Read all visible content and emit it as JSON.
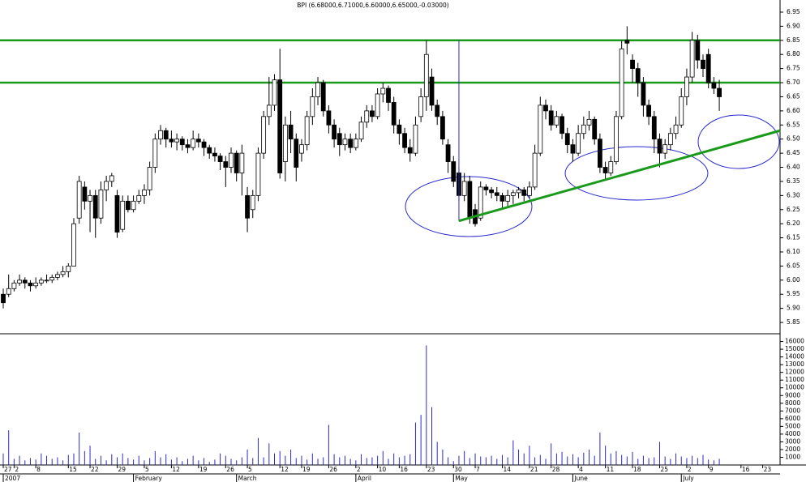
{
  "chart_data": {
    "type": "candlestick",
    "title": "BPI (6.68000,6.71000,6.60000,6.65000,-0.03000)",
    "xlim": [
      -0.6,
      143.2
    ],
    "ylim": [
      5.81,
      6.993
    ],
    "yticks": [
      5.85,
      {
        "value": 5.9,
        "label": "5.90"
      },
      5.95,
      {
        "value": 6.0,
        "label": "6.00"
      },
      6.05,
      {
        "value": 6.1,
        "label": "6.10"
      },
      6.15,
      {
        "value": 6.2,
        "label": "6.20"
      },
      6.25,
      {
        "value": 6.3,
        "label": "6.30"
      },
      6.35,
      {
        "value": 6.4,
        "label": "6.40"
      },
      6.45,
      {
        "value": 6.5,
        "label": "6.50"
      },
      6.55,
      {
        "value": 6.6,
        "label": "6.60"
      },
      6.65,
      {
        "value": 6.7,
        "label": "6.70"
      },
      6.75,
      {
        "value": 6.8,
        "label": "6.80"
      },
      6.85,
      {
        "value": 6.9,
        "label": "6.90"
      },
      6.95
    ],
    "xticks": [
      {
        "value": 0,
        "label": "27"
      },
      {
        "value": 2,
        "label": "2"
      },
      {
        "value": 6,
        "label": "8"
      },
      {
        "value": 12,
        "label": "15"
      },
      {
        "value": 16,
        "label": "22"
      },
      {
        "value": 21,
        "label": "29"
      },
      {
        "value": 26,
        "label": "5"
      },
      {
        "value": 31,
        "label": "12"
      },
      {
        "value": 36,
        "label": "19"
      },
      {
        "value": 41,
        "label": "26"
      },
      {
        "value": 45,
        "label": "5"
      },
      {
        "value": 51,
        "label": "12"
      },
      {
        "value": 55,
        "label": "19"
      },
      {
        "value": 60,
        "label": "26"
      },
      {
        "value": 65,
        "label": "2"
      },
      {
        "value": 69,
        "label": "10"
      },
      {
        "value": 73,
        "label": "16"
      },
      {
        "value": 78,
        "label": "23"
      },
      {
        "value": 83,
        "label": "30"
      },
      {
        "value": 87,
        "label": "7"
      },
      {
        "value": 92,
        "label": "14"
      },
      {
        "value": 97,
        "label": "21"
      },
      {
        "value": 101,
        "label": "28"
      },
      {
        "value": 106,
        "label": "4"
      },
      {
        "value": 111,
        "label": "11"
      },
      {
        "value": 116,
        "label": "18"
      },
      {
        "value": 121,
        "label": "25"
      },
      {
        "value": 126,
        "label": "2"
      },
      {
        "value": 130,
        "label": "9"
      },
      {
        "value": 136,
        "label": "16"
      },
      {
        "value": 140,
        "label": "23"
      }
    ],
    "month_ticks": [
      {
        "value": 0,
        "label": "2007"
      },
      {
        "value": 24,
        "label": "February"
      },
      {
        "value": 43,
        "label": "March"
      },
      {
        "value": 65,
        "label": "April"
      },
      {
        "value": 83,
        "label": "May"
      },
      {
        "value": 105,
        "label": "June"
      },
      {
        "value": 125,
        "label": "July"
      }
    ],
    "ohlc": [
      [
        5.95,
        5.97,
        5.9,
        5.92
      ],
      [
        5.95,
        6.02,
        5.94,
        5.97
      ],
      [
        5.97,
        6.0,
        5.96,
        5.99
      ],
      [
        5.99,
        6.02,
        5.98,
        6.0
      ],
      [
        6.0,
        6.01,
        5.97,
        5.99
      ],
      [
        5.99,
        6.0,
        5.96,
        5.98
      ],
      [
        5.98,
        6.01,
        5.97,
        5.99
      ],
      [
        5.99,
        6.01,
        5.98,
        6.0
      ],
      [
        6.0,
        6.02,
        5.99,
        6.0
      ],
      [
        6.0,
        6.02,
        5.99,
        6.01
      ],
      [
        6.01,
        6.03,
        6.0,
        6.02
      ],
      [
        6.02,
        6.05,
        6.01,
        6.03
      ],
      [
        6.03,
        6.06,
        6.01,
        6.05
      ],
      [
        6.05,
        6.22,
        6.05,
        6.2
      ],
      [
        6.22,
        6.37,
        6.2,
        6.35
      ],
      [
        6.33,
        6.35,
        6.25,
        6.28
      ],
      [
        6.28,
        6.32,
        6.17,
        6.3
      ],
      [
        6.3,
        6.32,
        6.15,
        6.22
      ],
      [
        6.22,
        6.35,
        6.2,
        6.32
      ],
      [
        6.32,
        6.37,
        6.28,
        6.35
      ],
      [
        6.35,
        6.38,
        6.33,
        6.37
      ],
      [
        6.3,
        6.32,
        6.15,
        6.17
      ],
      [
        6.18,
        6.3,
        6.17,
        6.28
      ],
      [
        6.28,
        6.3,
        6.24,
        6.25
      ],
      [
        6.25,
        6.3,
        6.24,
        6.28
      ],
      [
        6.28,
        6.32,
        6.27,
        6.3
      ],
      [
        6.3,
        6.34,
        6.27,
        6.32
      ],
      [
        6.32,
        6.42,
        6.3,
        6.4
      ],
      [
        6.4,
        6.52,
        6.38,
        6.5
      ],
      [
        6.5,
        6.55,
        6.48,
        6.53
      ],
      [
        6.53,
        6.54,
        6.47,
        6.5
      ],
      [
        6.5,
        6.53,
        6.47,
        6.49
      ],
      [
        6.49,
        6.52,
        6.46,
        6.5
      ],
      [
        6.5,
        6.51,
        6.46,
        6.48
      ],
      [
        6.48,
        6.5,
        6.45,
        6.47
      ],
      [
        6.47,
        6.53,
        6.46,
        6.5
      ],
      [
        6.5,
        6.52,
        6.47,
        6.49
      ],
      [
        6.49,
        6.5,
        6.44,
        6.47
      ],
      [
        6.47,
        6.48,
        6.43,
        6.45
      ],
      [
        6.45,
        6.47,
        6.42,
        6.44
      ],
      [
        6.44,
        6.45,
        6.39,
        6.42
      ],
      [
        6.42,
        6.44,
        6.33,
        6.4
      ],
      [
        6.4,
        6.47,
        6.38,
        6.45
      ],
      [
        6.45,
        6.46,
        6.35,
        6.38
      ],
      [
        6.38,
        6.48,
        6.3,
        6.45
      ],
      [
        6.3,
        6.33,
        6.17,
        6.22
      ],
      [
        6.25,
        6.32,
        6.22,
        6.3
      ],
      [
        6.3,
        6.47,
        6.28,
        6.45
      ],
      [
        6.45,
        6.6,
        6.43,
        6.58
      ],
      [
        6.58,
        6.72,
        6.55,
        6.62
      ],
      [
        6.62,
        6.73,
        6.6,
        6.71
      ],
      [
        6.71,
        6.82,
        6.36,
        6.38
      ],
      [
        6.42,
        6.58,
        6.35,
        6.55
      ],
      [
        6.55,
        6.6,
        6.45,
        6.5
      ],
      [
        6.5,
        6.52,
        6.35,
        6.4
      ],
      [
        6.45,
        6.5,
        6.42,
        6.48
      ],
      [
        6.48,
        6.6,
        6.46,
        6.58
      ],
      [
        6.58,
        6.68,
        6.55,
        6.65
      ],
      [
        6.65,
        6.72,
        6.62,
        6.7
      ],
      [
        6.7,
        6.71,
        6.58,
        6.6
      ],
      [
        6.6,
        6.62,
        6.52,
        6.55
      ],
      [
        6.55,
        6.57,
        6.47,
        6.5
      ],
      [
        6.52,
        6.54,
        6.44,
        6.48
      ],
      [
        6.48,
        6.52,
        6.46,
        6.5
      ],
      [
        6.5,
        6.52,
        6.45,
        6.47
      ],
      [
        6.47,
        6.52,
        6.46,
        6.5
      ],
      [
        6.5,
        6.58,
        6.49,
        6.56
      ],
      [
        6.56,
        6.62,
        6.54,
        6.6
      ],
      [
        6.6,
        6.62,
        6.56,
        6.58
      ],
      [
        6.58,
        6.68,
        6.57,
        6.66
      ],
      [
        6.66,
        6.7,
        6.63,
        6.68
      ],
      [
        6.68,
        6.69,
        6.6,
        6.63
      ],
      [
        6.63,
        6.65,
        6.52,
        6.55
      ],
      [
        6.55,
        6.57,
        6.48,
        6.52
      ],
      [
        6.52,
        6.54,
        6.45,
        6.47
      ],
      [
        6.47,
        6.5,
        6.42,
        6.45
      ],
      [
        6.45,
        6.58,
        6.44,
        6.55
      ],
      [
        6.58,
        6.68,
        6.56,
        6.65
      ],
      [
        6.65,
        6.85,
        6.6,
        6.8
      ],
      [
        6.72,
        6.75,
        6.6,
        6.62
      ],
      [
        6.62,
        6.64,
        6.55,
        6.58
      ],
      [
        6.58,
        6.6,
        6.48,
        6.5
      ],
      [
        6.48,
        6.5,
        6.38,
        6.42
      ],
      [
        6.42,
        6.44,
        6.33,
        6.35
      ],
      [
        6.38,
        6.4,
        6.28,
        6.3
      ],
      [
        6.3,
        6.38,
        6.28,
        6.35
      ],
      [
        6.35,
        6.37,
        6.2,
        6.22
      ],
      [
        6.25,
        6.27,
        6.19,
        6.2
      ],
      [
        6.22,
        6.35,
        6.21,
        6.33
      ],
      [
        6.33,
        6.34,
        6.3,
        6.32
      ],
      [
        6.32,
        6.33,
        6.29,
        6.31
      ],
      [
        6.31,
        6.33,
        6.28,
        6.3
      ],
      [
        6.3,
        6.31,
        6.25,
        6.28
      ],
      [
        6.28,
        6.32,
        6.26,
        6.3
      ],
      [
        6.3,
        6.32,
        6.27,
        6.31
      ],
      [
        6.31,
        6.33,
        6.29,
        6.32
      ],
      [
        6.32,
        6.33,
        6.28,
        6.3
      ],
      [
        6.3,
        6.35,
        6.29,
        6.33
      ],
      [
        6.33,
        6.48,
        6.32,
        6.45
      ],
      [
        6.45,
        6.65,
        6.44,
        6.62
      ],
      [
        6.62,
        6.64,
        6.57,
        6.6
      ],
      [
        6.6,
        6.62,
        6.53,
        6.55
      ],
      [
        6.55,
        6.6,
        6.54,
        6.58
      ],
      [
        6.58,
        6.59,
        6.5,
        6.52
      ],
      [
        6.52,
        6.54,
        6.45,
        6.48
      ],
      [
        6.48,
        6.5,
        6.42,
        6.45
      ],
      [
        6.45,
        6.55,
        6.44,
        6.52
      ],
      [
        6.52,
        6.58,
        6.5,
        6.55
      ],
      [
        6.55,
        6.6,
        6.53,
        6.57
      ],
      [
        6.57,
        6.58,
        6.48,
        6.5
      ],
      [
        6.5,
        6.52,
        6.38,
        6.4
      ],
      [
        6.4,
        6.42,
        6.36,
        6.38
      ],
      [
        6.38,
        6.44,
        6.37,
        6.42
      ],
      [
        6.42,
        6.6,
        6.41,
        6.58
      ],
      [
        6.58,
        6.85,
        6.57,
        6.82
      ],
      [
        6.85,
        6.9,
        6.8,
        6.84
      ],
      [
        6.78,
        6.8,
        6.7,
        6.75
      ],
      [
        6.75,
        6.77,
        6.65,
        6.7
      ],
      [
        6.7,
        6.72,
        6.58,
        6.62
      ],
      [
        6.62,
        6.64,
        6.55,
        6.58
      ],
      [
        6.58,
        6.6,
        6.45,
        6.5
      ],
      [
        6.5,
        6.52,
        6.4,
        6.45
      ],
      [
        6.45,
        6.5,
        6.43,
        6.48
      ],
      [
        6.48,
        6.54,
        6.46,
        6.52
      ],
      [
        6.52,
        6.58,
        6.5,
        6.55
      ],
      [
        6.55,
        6.68,
        6.54,
        6.65
      ],
      [
        6.65,
        6.75,
        6.62,
        6.72
      ],
      [
        6.72,
        6.88,
        6.7,
        6.85
      ],
      [
        6.85,
        6.87,
        6.75,
        6.78
      ],
      [
        6.78,
        6.8,
        6.72,
        6.75
      ],
      [
        6.8,
        6.82,
        6.68,
        6.7
      ],
      [
        6.7,
        6.72,
        6.66,
        6.68
      ],
      [
        6.68,
        6.71,
        6.6,
        6.65
      ]
    ],
    "hlines": [
      6.85,
      6.7
    ],
    "hline_color": "#1a9a1a",
    "trend": {
      "x": [
        84,
        143.2
      ],
      "y": [
        6.21,
        6.53
      ],
      "color": "#1a9a1a"
    },
    "cursor": {
      "x": 84,
      "y": [
        6.21,
        6.85
      ],
      "color": "#2a2ad0"
    },
    "volume": {
      "color": "#2a2ad0",
      "ylim": [
        0,
        16900
      ],
      "yticks": [
        1000,
        2000,
        3000,
        4000,
        5000,
        6000,
        7000,
        8000,
        9000,
        10000,
        11000,
        12000,
        13000,
        14000,
        15000,
        16000
      ],
      "values": [
        1500,
        4500,
        800,
        1200,
        600,
        900,
        700,
        1500,
        1200,
        800,
        1000,
        600,
        1300,
        1500,
        4200,
        1800,
        2500,
        800,
        1200,
        600,
        1400,
        1000,
        1500,
        900,
        700,
        1200,
        600,
        900,
        1800,
        1000,
        1400,
        700,
        1000,
        500,
        800,
        1200,
        600,
        900,
        400,
        700,
        1500,
        1200,
        800,
        600,
        1000,
        2000,
        900,
        3500,
        1000,
        2800,
        1500,
        1800,
        1200,
        2000,
        900,
        1200,
        700,
        1500,
        800,
        1000,
        5200,
        1400,
        1000,
        1200,
        800,
        600,
        1400,
        900,
        1000,
        1200,
        1800,
        800,
        1500,
        1000,
        1200,
        1400,
        5500,
        6500,
        15500,
        7500,
        3000,
        2000,
        1000,
        500,
        1200,
        1800,
        900,
        1500,
        1100,
        1000,
        1200,
        800,
        1300,
        1000,
        3200,
        2000,
        1500,
        2500,
        1000,
        1300,
        800,
        2800,
        1500,
        1700,
        1100,
        1400,
        1000,
        1600,
        2000,
        1200,
        4200,
        2500,
        1500,
        1800,
        1300,
        1100,
        1700,
        800,
        1200,
        900,
        1000,
        3000,
        1100,
        800,
        1500,
        1100,
        900,
        1200,
        900,
        1300,
        700,
        600,
        800
      ]
    }
  }
}
